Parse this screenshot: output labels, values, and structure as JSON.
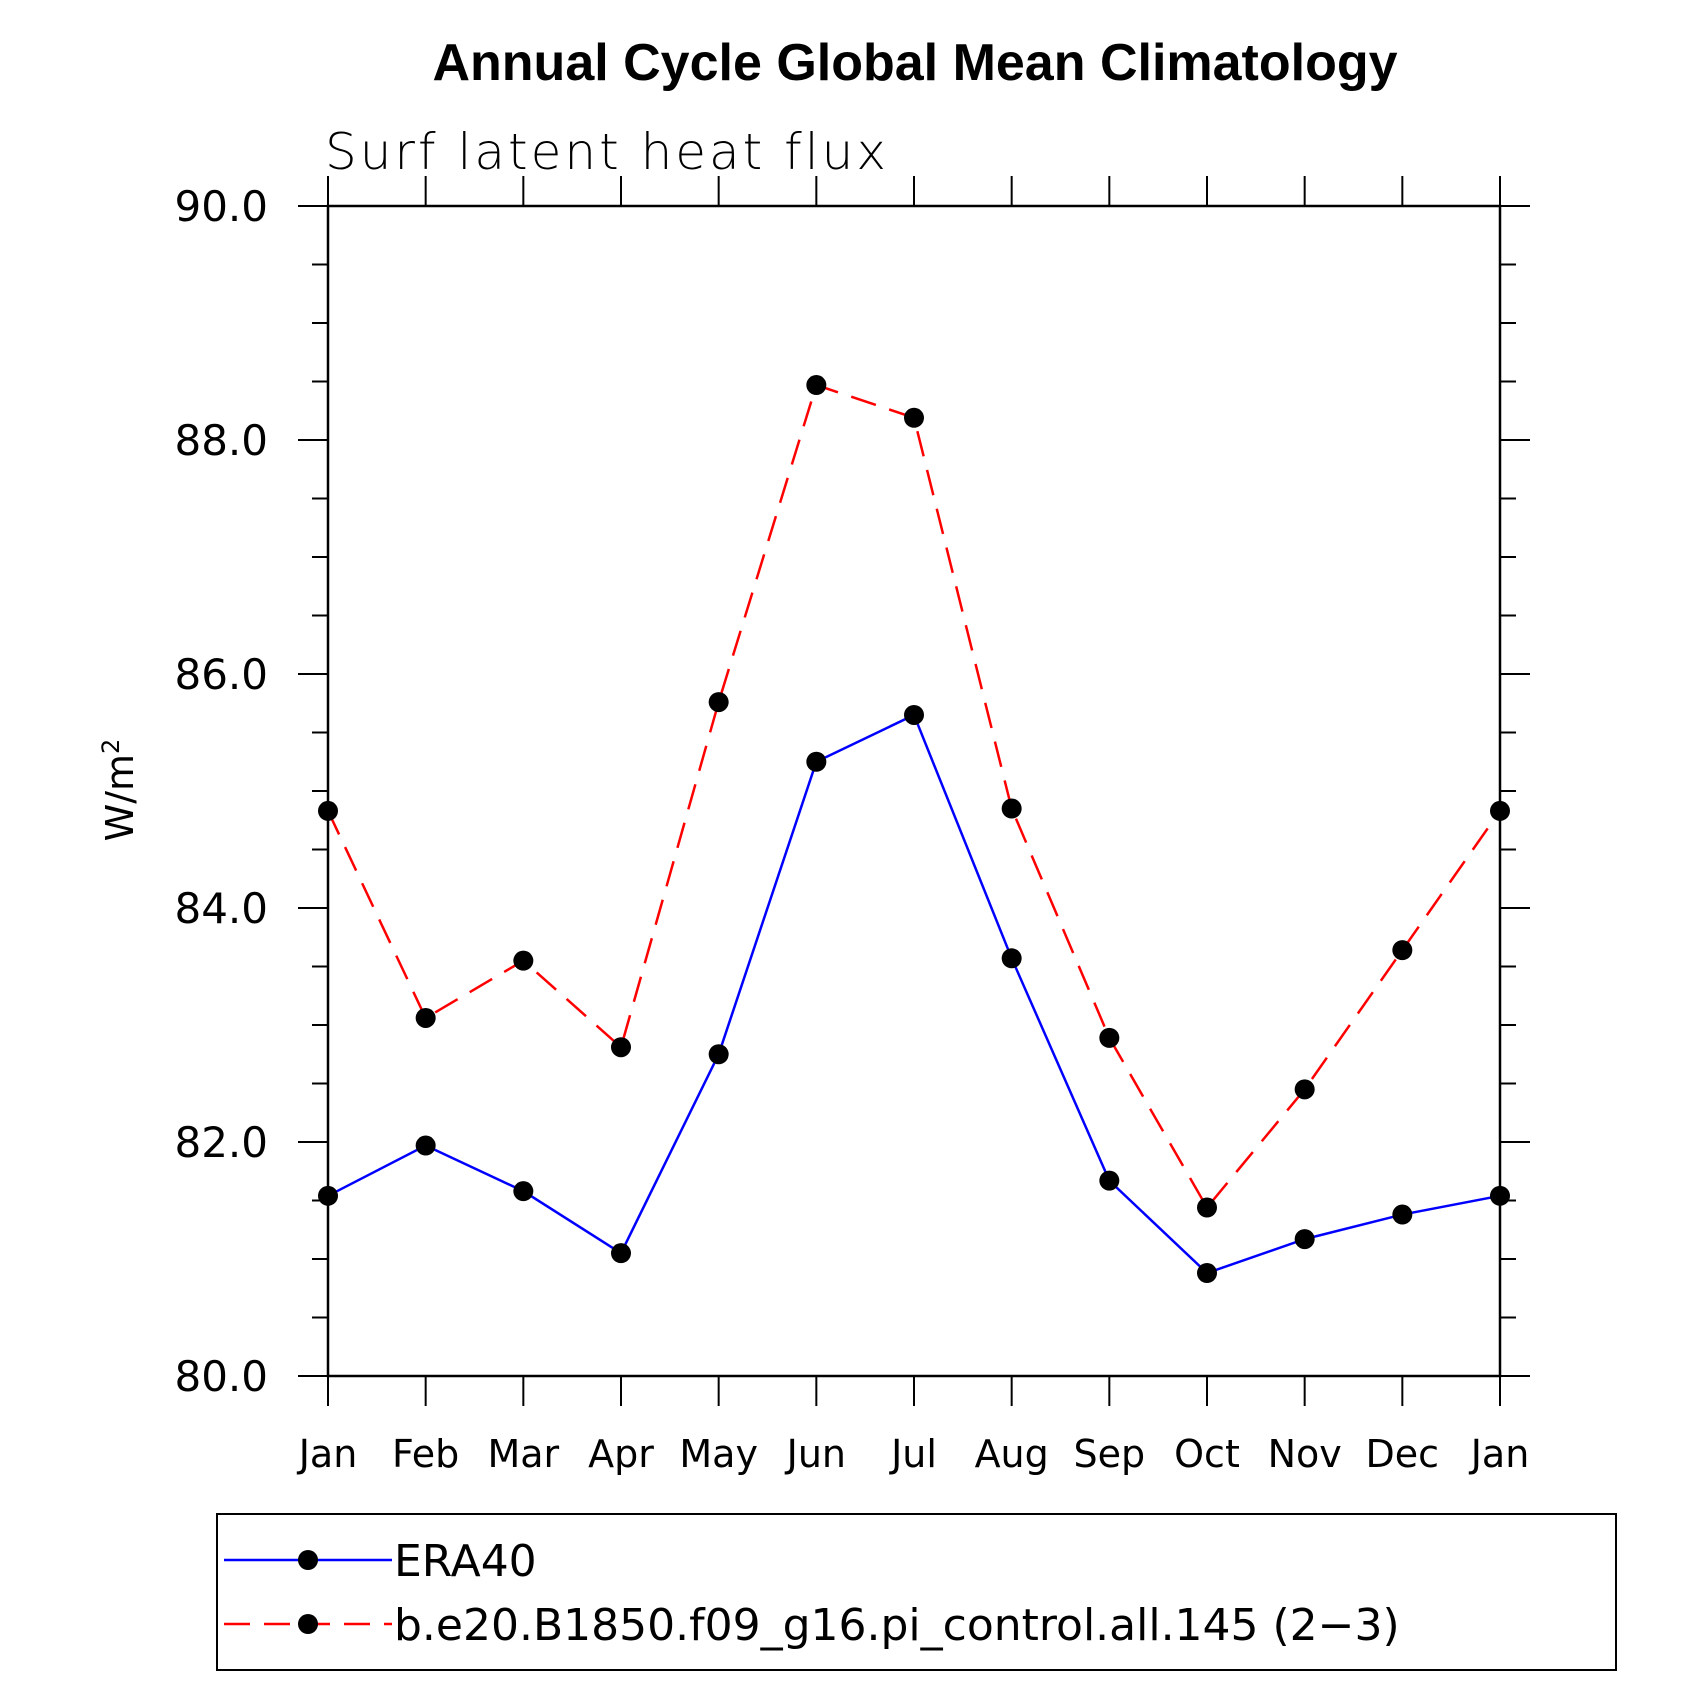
{
  "chart_data": {
    "type": "line",
    "title": "Annual Cycle Global Mean Climatology",
    "subtitle": "Surf latent heat flux",
    "ylabel_base": "W/m",
    "ylabel_sup": "2",
    "xlabel": "",
    "ylim": [
      80.0,
      90.0
    ],
    "y_major_ticks": [
      "80.0",
      "82.0",
      "84.0",
      "86.0",
      "88.0",
      "90.0"
    ],
    "y_minor_step": 0.5,
    "categories": [
      "Jan",
      "Feb",
      "Mar",
      "Apr",
      "May",
      "Jun",
      "Jul",
      "Aug",
      "Sep",
      "Oct",
      "Nov",
      "Dec",
      "Jan"
    ],
    "series": [
      {
        "name": "ERA40",
        "color": "#0000ff",
        "dash": "solid",
        "values": [
          81.54,
          81.97,
          81.58,
          81.05,
          82.75,
          85.25,
          85.65,
          83.57,
          81.67,
          80.88,
          81.17,
          81.38,
          81.54
        ]
      },
      {
        "name": "b.e20.B1850.f09_g16.pi_control.all.145 (2−3)",
        "color": "#ff0000",
        "dash": "dashed",
        "values": [
          84.83,
          83.06,
          83.55,
          82.81,
          85.76,
          88.47,
          88.19,
          84.85,
          82.89,
          81.44,
          82.45,
          83.64,
          84.83
        ]
      }
    ],
    "marker_color": "#000000",
    "legend_position": "bottom"
  }
}
